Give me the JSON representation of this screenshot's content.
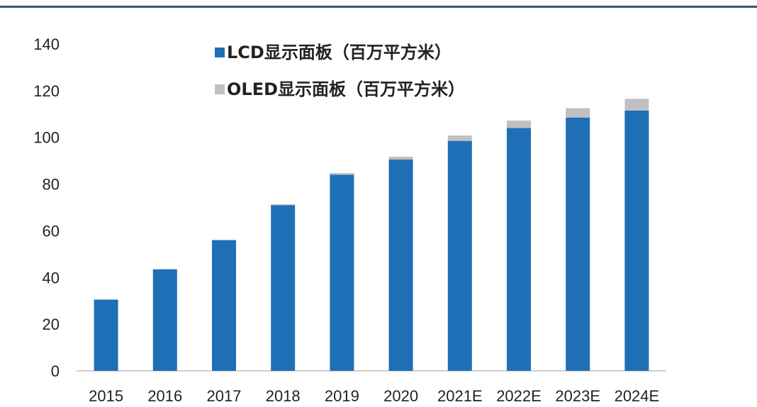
{
  "chart_data": {
    "type": "bar",
    "stacked": true,
    "categories": [
      "2015",
      "2016",
      "2017",
      "2018",
      "2019",
      "2020",
      "2021E",
      "2022E",
      "2023E",
      "2024E"
    ],
    "series": [
      {
        "name": "LCD显示面板（百万平方米）",
        "color": "#1f6fb7",
        "values": [
          30.5,
          43.5,
          56,
          71,
          84,
          90.5,
          98.5,
          104,
          108.5,
          111.5
        ]
      },
      {
        "name": "OLED显示面板（百万平方米）",
        "color": "#c0c0c0",
        "values": [
          0,
          0,
          0,
          0.3,
          0.7,
          1.2,
          2.3,
          3.2,
          4.0,
          5.0
        ]
      }
    ],
    "title": "",
    "xlabel": "",
    "ylabel": "",
    "ylim": [
      0,
      140
    ],
    "yticks": [
      0,
      20,
      40,
      60,
      80,
      100,
      120,
      140
    ],
    "grid": false,
    "legend_position": "top-center"
  }
}
